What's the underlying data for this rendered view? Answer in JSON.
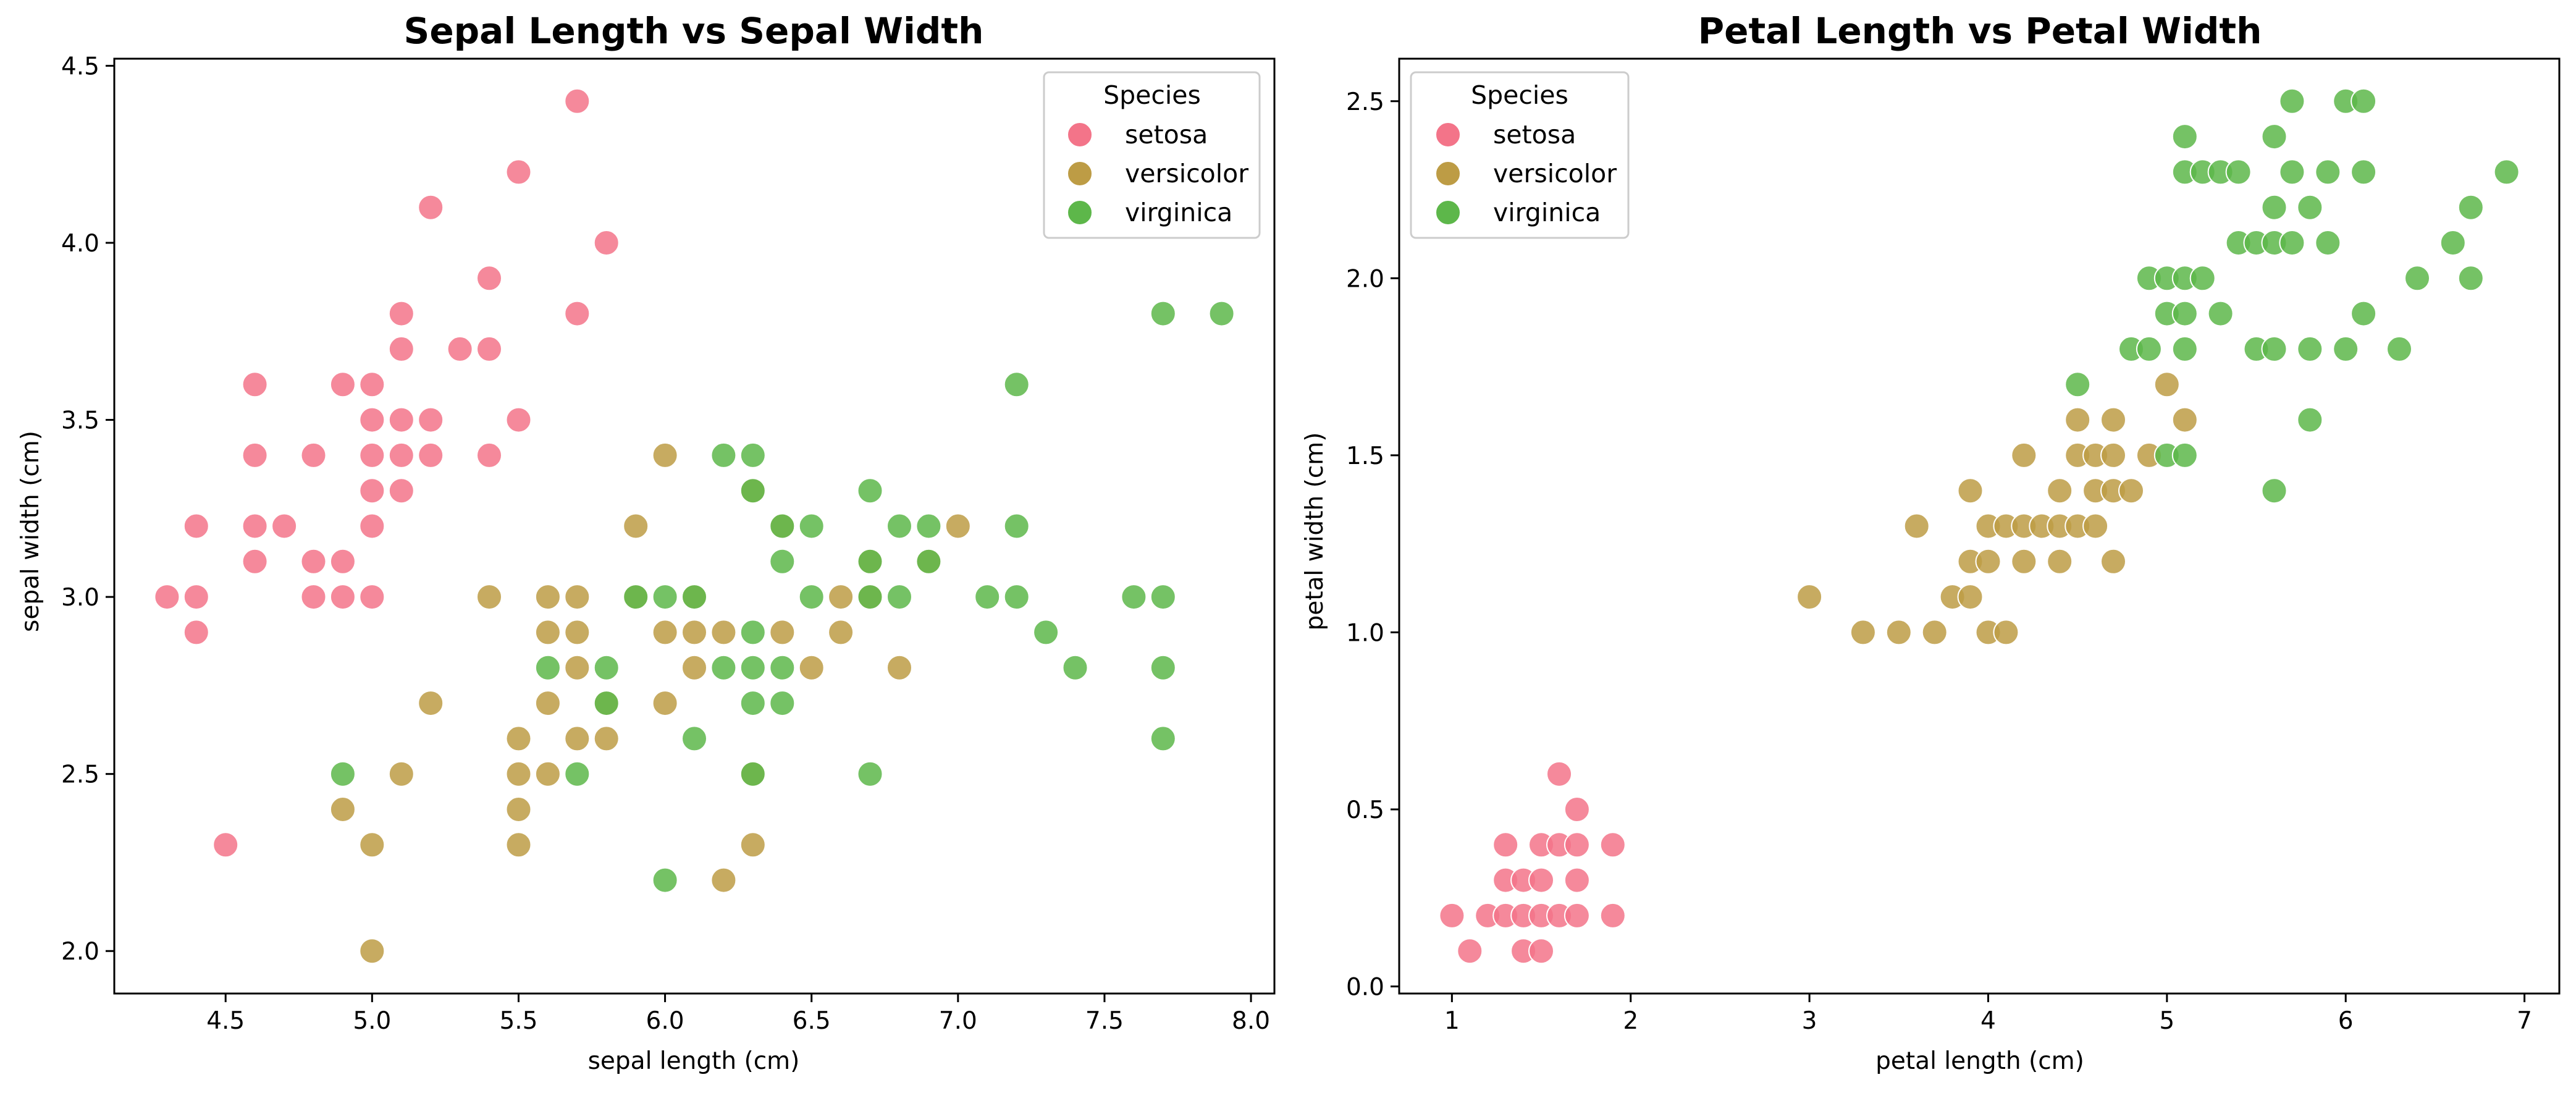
{
  "colors": {
    "setosa": "#f37489",
    "versicolor": "#bd9c45",
    "virginica": "#5db74a"
  },
  "chart_data": [
    {
      "type": "scatter",
      "title": "Sepal Length vs Sepal Width",
      "xlabel": "sepal length (cm)",
      "ylabel": "sepal width (cm)",
      "xlim": [
        4.12,
        8.08
      ],
      "ylim": [
        1.88,
        4.52
      ],
      "xticks": [
        4.5,
        5.0,
        5.5,
        6.0,
        6.5,
        7.0,
        7.5,
        8.0
      ],
      "xticklabels": [
        "4.5",
        "5.0",
        "5.5",
        "6.0",
        "6.5",
        "7.0",
        "7.5",
        "8.0"
      ],
      "yticks": [
        2.0,
        2.5,
        3.0,
        3.5,
        4.0,
        4.5
      ],
      "yticklabels": [
        "2.0",
        "2.5",
        "3.0",
        "3.5",
        "4.0",
        "4.5"
      ],
      "grid": false,
      "legend": {
        "title": "Species",
        "placement": "top-right",
        "entries": [
          "setosa",
          "versicolor",
          "virginica"
        ]
      },
      "series": [
        {
          "name": "setosa",
          "points": [
            [
              4.3,
              3.0
            ],
            [
              4.4,
              3.2
            ],
            [
              4.4,
              3.0
            ],
            [
              4.4,
              2.9
            ],
            [
              4.5,
              2.3
            ],
            [
              4.6,
              3.6
            ],
            [
              4.6,
              3.4
            ],
            [
              4.6,
              3.2
            ],
            [
              4.6,
              3.1
            ],
            [
              4.7,
              3.2
            ],
            [
              4.8,
              3.4
            ],
            [
              4.8,
              3.1
            ],
            [
              4.8,
              3.0
            ],
            [
              4.9,
              3.6
            ],
            [
              4.9,
              3.1
            ],
            [
              4.9,
              3.0
            ],
            [
              5.0,
              3.6
            ],
            [
              5.0,
              3.5
            ],
            [
              5.0,
              3.4
            ],
            [
              5.0,
              3.3
            ],
            [
              5.0,
              3.2
            ],
            [
              5.0,
              3.0
            ],
            [
              5.1,
              3.8
            ],
            [
              5.1,
              3.7
            ],
            [
              5.1,
              3.5
            ],
            [
              5.1,
              3.4
            ],
            [
              5.1,
              3.3
            ],
            [
              5.2,
              4.1
            ],
            [
              5.2,
              3.5
            ],
            [
              5.2,
              3.4
            ],
            [
              5.3,
              3.7
            ],
            [
              5.4,
              3.9
            ],
            [
              5.4,
              3.7
            ],
            [
              5.4,
              3.4
            ],
            [
              5.5,
              4.2
            ],
            [
              5.5,
              3.5
            ],
            [
              5.7,
              4.4
            ],
            [
              5.7,
              3.8
            ],
            [
              5.8,
              4.0
            ]
          ]
        },
        {
          "name": "versicolor",
          "points": [
            [
              4.9,
              2.4
            ],
            [
              5.0,
              2.3
            ],
            [
              5.0,
              2.0
            ],
            [
              5.1,
              2.5
            ],
            [
              5.2,
              2.7
            ],
            [
              5.4,
              3.0
            ],
            [
              5.5,
              2.6
            ],
            [
              5.5,
              2.5
            ],
            [
              5.5,
              2.4
            ],
            [
              5.5,
              2.3
            ],
            [
              5.6,
              3.0
            ],
            [
              5.6,
              2.9
            ],
            [
              5.6,
              2.7
            ],
            [
              5.6,
              2.5
            ],
            [
              5.7,
              3.0
            ],
            [
              5.7,
              2.9
            ],
            [
              5.7,
              2.8
            ],
            [
              5.7,
              2.6
            ],
            [
              5.8,
              2.7
            ],
            [
              5.8,
              2.6
            ],
            [
              5.9,
              3.2
            ],
            [
              5.9,
              3.0
            ],
            [
              6.0,
              3.4
            ],
            [
              6.0,
              2.9
            ],
            [
              6.0,
              2.7
            ],
            [
              6.1,
              3.0
            ],
            [
              6.1,
              2.9
            ],
            [
              6.1,
              2.8
            ],
            [
              6.2,
              2.9
            ],
            [
              6.2,
              2.2
            ],
            [
              6.3,
              3.3
            ],
            [
              6.3,
              2.5
            ],
            [
              6.3,
              2.3
            ],
            [
              6.4,
              3.2
            ],
            [
              6.4,
              2.9
            ],
            [
              6.5,
              2.8
            ],
            [
              6.6,
              3.0
            ],
            [
              6.6,
              2.9
            ],
            [
              6.7,
              3.1
            ],
            [
              6.7,
              3.0
            ],
            [
              6.8,
              2.8
            ],
            [
              6.9,
              3.1
            ],
            [
              7.0,
              3.2
            ]
          ]
        },
        {
          "name": "virginica",
          "points": [
            [
              4.9,
              2.5
            ],
            [
              5.6,
              2.8
            ],
            [
              5.7,
              2.5
            ],
            [
              5.8,
              2.8
            ],
            [
              5.8,
              2.7
            ],
            [
              5.9,
              3.0
            ],
            [
              6.0,
              3.0
            ],
            [
              6.0,
              2.2
            ],
            [
              6.1,
              3.0
            ],
            [
              6.1,
              2.6
            ],
            [
              6.2,
              3.4
            ],
            [
              6.2,
              2.8
            ],
            [
              6.3,
              3.4
            ],
            [
              6.3,
              3.3
            ],
            [
              6.3,
              2.9
            ],
            [
              6.3,
              2.8
            ],
            [
              6.3,
              2.7
            ],
            [
              6.3,
              2.5
            ],
            [
              6.4,
              3.2
            ],
            [
              6.4,
              3.1
            ],
            [
              6.4,
              2.8
            ],
            [
              6.4,
              2.7
            ],
            [
              6.5,
              3.2
            ],
            [
              6.5,
              3.0
            ],
            [
              6.7,
              3.3
            ],
            [
              6.7,
              3.1
            ],
            [
              6.7,
              3.0
            ],
            [
              6.7,
              2.5
            ],
            [
              6.8,
              3.2
            ],
            [
              6.8,
              3.0
            ],
            [
              6.9,
              3.2
            ],
            [
              6.9,
              3.1
            ],
            [
              7.1,
              3.0
            ],
            [
              7.2,
              3.6
            ],
            [
              7.2,
              3.2
            ],
            [
              7.2,
              3.0
            ],
            [
              7.3,
              2.9
            ],
            [
              7.4,
              2.8
            ],
            [
              7.6,
              3.0
            ],
            [
              7.7,
              3.8
            ],
            [
              7.7,
              3.0
            ],
            [
              7.7,
              2.8
            ],
            [
              7.7,
              2.6
            ],
            [
              7.9,
              3.8
            ]
          ]
        }
      ]
    },
    {
      "type": "scatter",
      "title": "Petal Length vs Petal Width",
      "xlabel": "petal length (cm)",
      "ylabel": "petal width (cm)",
      "xlim": [
        0.705,
        7.195
      ],
      "ylim": [
        -0.02,
        2.62
      ],
      "xticks": [
        1,
        2,
        3,
        4,
        5,
        6,
        7
      ],
      "xticklabels": [
        "1",
        "2",
        "3",
        "4",
        "5",
        "6",
        "7"
      ],
      "yticks": [
        0.0,
        0.5,
        1.0,
        1.5,
        2.0,
        2.5
      ],
      "yticklabels": [
        "0.0",
        "0.5",
        "1.0",
        "1.5",
        "2.0",
        "2.5"
      ],
      "grid": false,
      "legend": {
        "title": "Species",
        "placement": "top-left",
        "entries": [
          "setosa",
          "versicolor",
          "virginica"
        ]
      },
      "series": [
        {
          "name": "setosa",
          "points": [
            [
              1.0,
              0.2
            ],
            [
              1.1,
              0.1
            ],
            [
              1.2,
              0.2
            ],
            [
              1.3,
              0.4
            ],
            [
              1.3,
              0.3
            ],
            [
              1.3,
              0.2
            ],
            [
              1.4,
              0.3
            ],
            [
              1.4,
              0.2
            ],
            [
              1.4,
              0.1
            ],
            [
              1.5,
              0.4
            ],
            [
              1.5,
              0.3
            ],
            [
              1.5,
              0.2
            ],
            [
              1.5,
              0.1
            ],
            [
              1.6,
              0.6
            ],
            [
              1.6,
              0.4
            ],
            [
              1.6,
              0.2
            ],
            [
              1.7,
              0.5
            ],
            [
              1.7,
              0.4
            ],
            [
              1.7,
              0.3
            ],
            [
              1.7,
              0.2
            ],
            [
              1.9,
              0.4
            ],
            [
              1.9,
              0.2
            ]
          ]
        },
        {
          "name": "versicolor",
          "points": [
            [
              3.0,
              1.1
            ],
            [
              3.3,
              1.0
            ],
            [
              3.5,
              1.0
            ],
            [
              3.6,
              1.3
            ],
            [
              3.7,
              1.0
            ],
            [
              3.8,
              1.1
            ],
            [
              3.9,
              1.4
            ],
            [
              3.9,
              1.2
            ],
            [
              3.9,
              1.1
            ],
            [
              4.0,
              1.3
            ],
            [
              4.0,
              1.2
            ],
            [
              4.0,
              1.0
            ],
            [
              4.1,
              1.3
            ],
            [
              4.1,
              1.0
            ],
            [
              4.2,
              1.5
            ],
            [
              4.2,
              1.3
            ],
            [
              4.2,
              1.2
            ],
            [
              4.3,
              1.3
            ],
            [
              4.4,
              1.4
            ],
            [
              4.4,
              1.3
            ],
            [
              4.4,
              1.2
            ],
            [
              4.5,
              1.6
            ],
            [
              4.5,
              1.5
            ],
            [
              4.5,
              1.3
            ],
            [
              4.6,
              1.5
            ],
            [
              4.6,
              1.4
            ],
            [
              4.6,
              1.3
            ],
            [
              4.7,
              1.6
            ],
            [
              4.7,
              1.5
            ],
            [
              4.7,
              1.4
            ],
            [
              4.7,
              1.2
            ],
            [
              4.8,
              1.4
            ],
            [
              4.9,
              1.5
            ],
            [
              5.0,
              1.7
            ],
            [
              5.1,
              1.6
            ]
          ]
        },
        {
          "name": "virginica",
          "points": [
            [
              4.5,
              1.7
            ],
            [
              4.8,
              1.8
            ],
            [
              4.9,
              2.0
            ],
            [
              4.9,
              1.8
            ],
            [
              5.0,
              2.0
            ],
            [
              5.0,
              1.9
            ],
            [
              5.0,
              1.5
            ],
            [
              5.1,
              2.4
            ],
            [
              5.1,
              2.3
            ],
            [
              5.1,
              2.0
            ],
            [
              5.1,
              1.9
            ],
            [
              5.1,
              1.8
            ],
            [
              5.1,
              1.5
            ],
            [
              5.2,
              2.3
            ],
            [
              5.2,
              2.0
            ],
            [
              5.3,
              2.3
            ],
            [
              5.3,
              1.9
            ],
            [
              5.4,
              2.3
            ],
            [
              5.4,
              2.1
            ],
            [
              5.5,
              2.1
            ],
            [
              5.5,
              1.8
            ],
            [
              5.6,
              2.4
            ],
            [
              5.6,
              2.2
            ],
            [
              5.6,
              2.1
            ],
            [
              5.6,
              1.8
            ],
            [
              5.6,
              1.4
            ],
            [
              5.7,
              2.5
            ],
            [
              5.7,
              2.3
            ],
            [
              5.7,
              2.1
            ],
            [
              5.8,
              2.2
            ],
            [
              5.8,
              1.8
            ],
            [
              5.8,
              1.6
            ],
            [
              5.9,
              2.3
            ],
            [
              5.9,
              2.1
            ],
            [
              6.0,
              2.5
            ],
            [
              6.0,
              1.8
            ],
            [
              6.1,
              2.5
            ],
            [
              6.1,
              2.3
            ],
            [
              6.1,
              1.9
            ],
            [
              6.3,
              1.8
            ],
            [
              6.4,
              2.0
            ],
            [
              6.6,
              2.1
            ],
            [
              6.7,
              2.2
            ],
            [
              6.7,
              2.0
            ],
            [
              6.9,
              2.3
            ]
          ]
        }
      ]
    }
  ]
}
